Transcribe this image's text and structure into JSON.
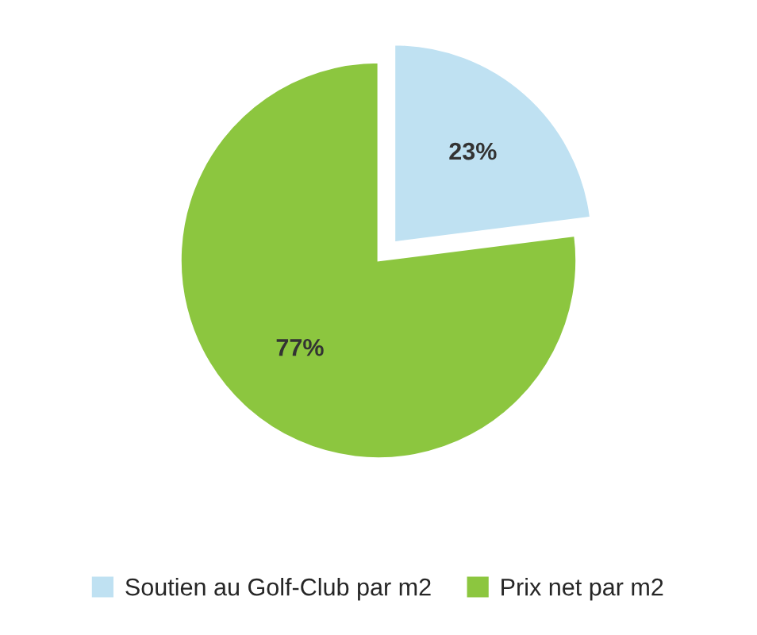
{
  "chart_data": {
    "type": "pie",
    "categories": [
      "Soutien au Golf-Club par m2",
      "Prix net par m2"
    ],
    "values": [
      23,
      77
    ],
    "colors": [
      "#bfe1f2",
      "#8cc63f"
    ],
    "value_labels": [
      "23%",
      "77%"
    ],
    "legend": "bottom"
  }
}
